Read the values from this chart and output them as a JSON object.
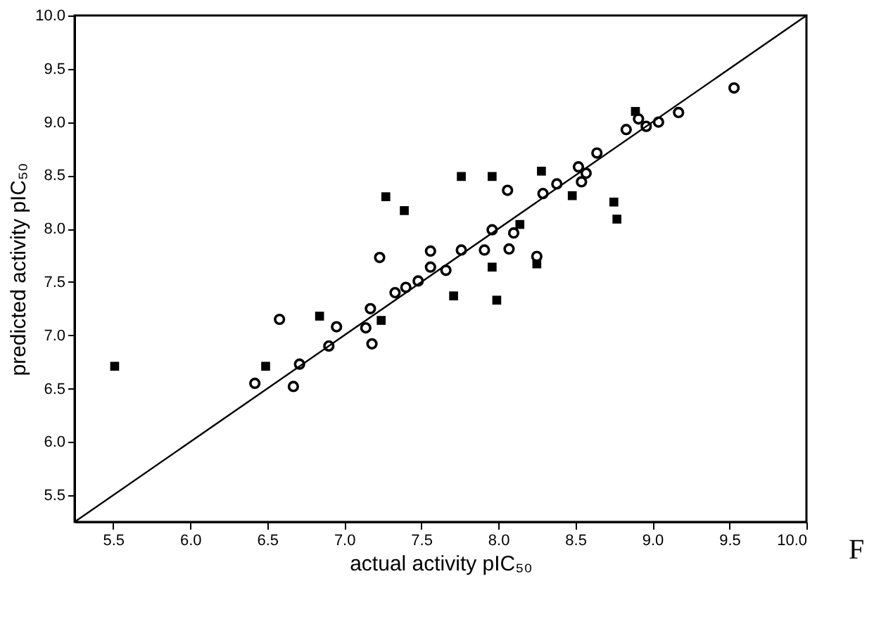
{
  "chart_data": {
    "type": "scatter",
    "xlabel": "actual activity pIC₅₀",
    "ylabel": "predicted activity pIC₅₀",
    "xlim": [
      5.25,
      10
    ],
    "ylim": [
      5.25,
      10
    ],
    "xticks": [
      5.5,
      {
        "value": 6,
        "label": "6.0"
      },
      6.5,
      {
        "value": 7,
        "label": "7.0"
      },
      7.5,
      {
        "value": 8,
        "label": "8.0"
      },
      8.5,
      {
        "value": 9,
        "label": "9.0"
      },
      9.5,
      {
        "value": 10,
        "label": "10.0"
      }
    ],
    "yticks": [
      5.5,
      {
        "value": 6,
        "label": "6.0"
      },
      6.5,
      {
        "value": 7,
        "label": "7.0"
      },
      7.5,
      {
        "value": 8,
        "label": "8.0"
      },
      8.5,
      {
        "value": 9,
        "label": "9.0"
      },
      9.5,
      {
        "value": 10,
        "label": "10.0"
      }
    ],
    "grid": false,
    "series": [
      {
        "marker": "square",
        "color": "#000000",
        "x": [
          5.51,
          6.49,
          6.84,
          7.24,
          7.27,
          7.39,
          7.76,
          7.96,
          8.28,
          8.89,
          8.48,
          8.75,
          8.77,
          8.14,
          7.96,
          8.25,
          7.71,
          7.99
        ],
        "values": [
          6.71,
          6.71,
          7.18,
          7.14,
          8.3,
          8.17,
          8.49,
          8.49,
          8.54,
          9.1,
          8.31,
          8.25,
          8.09,
          8.04,
          7.64,
          7.67,
          7.37,
          7.33
        ]
      },
      {
        "marker": "circle",
        "color": "#000000",
        "x": [
          6.42,
          6.58,
          6.67,
          6.71,
          6.9,
          6.95,
          7.14,
          7.17,
          7.18,
          7.33,
          7.4,
          7.48,
          7.23,
          7.56,
          7.56,
          7.66,
          7.76,
          7.91,
          8.07,
          7.96,
          8.1,
          8.06,
          8.29,
          8.38,
          8.52,
          8.57,
          8.54,
          8.64,
          8.25,
          8.83,
          8.91,
          8.96,
          9.04,
          9.17,
          9.53
        ],
        "values": [
          6.55,
          7.15,
          6.52,
          6.73,
          6.9,
          7.08,
          7.07,
          7.25,
          6.92,
          7.4,
          7.45,
          7.51,
          7.73,
          7.79,
          7.64,
          7.61,
          7.8,
          7.8,
          7.81,
          7.99,
          7.96,
          8.36,
          8.33,
          8.42,
          8.58,
          8.52,
          8.44,
          8.71,
          7.74,
          8.93,
          9.03,
          8.96,
          9.0,
          9.09,
          9.32
        ]
      },
      {
        "type": "line",
        "color": "#000000",
        "line_style": "solid",
        "x": [
          5.25,
          10
        ],
        "values": [
          5.25,
          10
        ]
      }
    ],
    "annotations": [
      "F"
    ]
  }
}
